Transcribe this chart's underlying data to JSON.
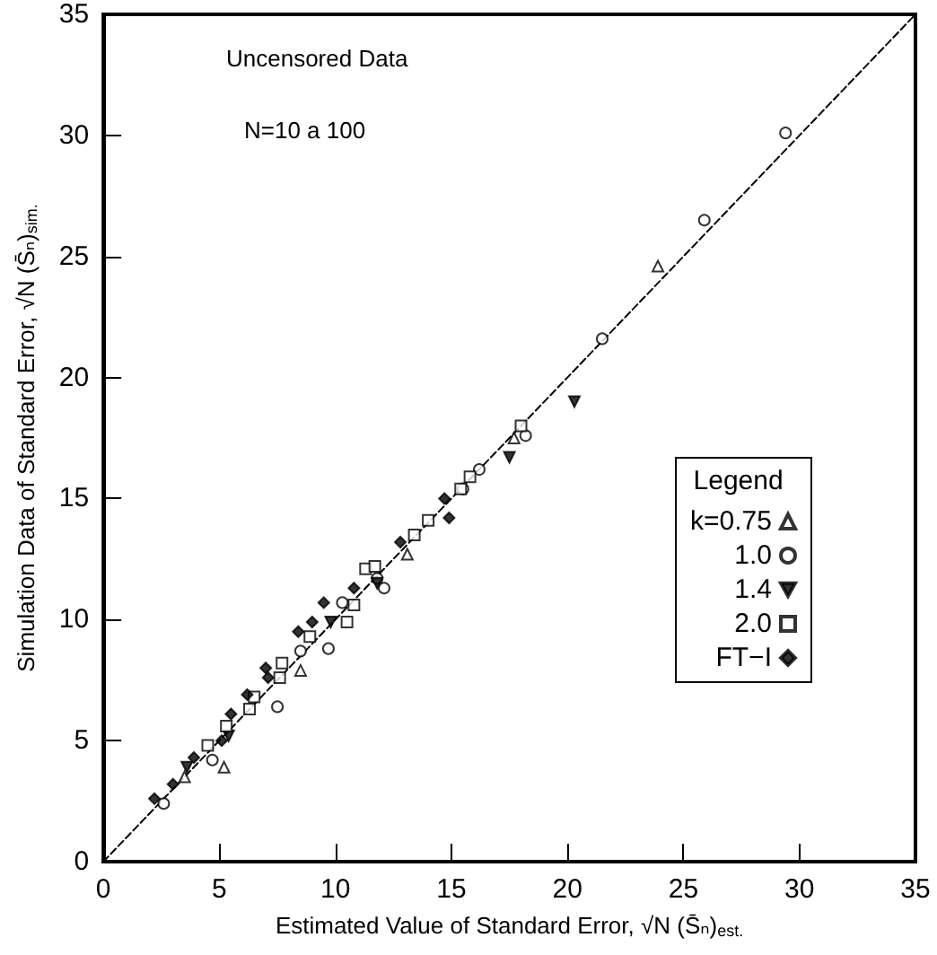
{
  "chart_data": {
    "type": "scatter",
    "xlabel": "Estimated Value of Standard Error, √N (S̄ₙ)$_{est.}$",
    "ylabel": "Simulation Data of Standard Error, √N (S̄ₙ)$_{sim.}$",
    "legend_title": "Legend",
    "annotations": [
      "Uncensored Data",
      "N=10 a 100"
    ],
    "xlim": [
      0,
      35
    ],
    "ylim": [
      0,
      35
    ],
    "xticks": [
      0,
      5,
      10,
      15,
      20,
      25,
      30,
      35
    ],
    "yticks": [
      0,
      5,
      10,
      15,
      20,
      25,
      30,
      35
    ],
    "grid": false,
    "legend": "bottom right",
    "series": [
      {
        "name": "k=0.75",
        "color": "#000000",
        "marker": "triangle",
        "x": [
          3.5,
          5.2,
          8.5,
          13.1,
          17.7,
          23.9
        ],
        "values": [
          3.5,
          3.9,
          7.9,
          12.7,
          17.5,
          24.6
        ]
      },
      {
        "name": "1.0",
        "color": "#000000",
        "marker": "circle",
        "x": [
          2.6,
          4.7,
          7.5,
          8.5,
          9.7,
          10.3,
          11.8,
          12.1,
          15.5,
          16.2,
          18.2,
          21.5,
          25.9,
          29.4
        ],
        "values": [
          2.4,
          4.2,
          6.4,
          8.7,
          8.8,
          10.7,
          11.7,
          11.3,
          15.4,
          16.2,
          17.6,
          21.6,
          26.5,
          30.1
        ]
      },
      {
        "name": "1.4",
        "color": "#000000",
        "marker": "triangle",
        "x": [
          3.6,
          5.4,
          9.8,
          11.8,
          17.5,
          20.3
        ],
        "values": [
          3.9,
          5.2,
          9.9,
          11.5,
          16.7,
          19.0
        ]
      },
      {
        "name": "2.0",
        "color": "#000000",
        "marker": "square",
        "x": [
          4.5,
          5.3,
          6.3,
          6.5,
          7.6,
          7.7,
          8.9,
          10.5,
          10.8,
          11.3,
          11.7,
          13.4,
          14.0,
          15.4,
          15.8,
          18.0
        ],
        "values": [
          4.8,
          5.6,
          6.3,
          6.8,
          7.6,
          8.2,
          9.3,
          9.9,
          10.6,
          12.1,
          12.2,
          13.5,
          14.1,
          15.4,
          15.9,
          18.0
        ]
      },
      {
        "name": "FT−I",
        "color": "#000000",
        "marker": "diamond",
        "x": [
          2.2,
          3.0,
          3.9,
          5.1,
          5.5,
          6.2,
          7.0,
          7.1,
          8.4,
          9.0,
          9.5,
          10.8,
          12.8,
          14.7,
          14.9
        ],
        "values": [
          2.6,
          3.2,
          4.3,
          5.0,
          6.1,
          6.9,
          8.0,
          7.6,
          9.5,
          9.9,
          10.7,
          11.3,
          13.2,
          15.0,
          14.2
        ]
      },
      {
        "type": "line",
        "color": "#000000",
        "line_style": "dashed",
        "marker": "none",
        "x": [
          0,
          35
        ],
        "values": [
          0,
          35
        ]
      }
    ]
  }
}
